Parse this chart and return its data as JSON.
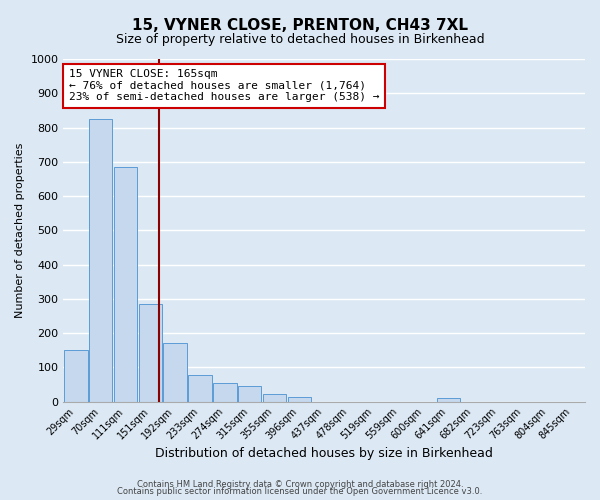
{
  "title": "15, VYNER CLOSE, PRENTON, CH43 7XL",
  "subtitle": "Size of property relative to detached houses in Birkenhead",
  "xlabel": "Distribution of detached houses by size in Birkenhead",
  "ylabel": "Number of detached properties",
  "bins": [
    "29sqm",
    "70sqm",
    "111sqm",
    "151sqm",
    "192sqm",
    "233sqm",
    "274sqm",
    "315sqm",
    "355sqm",
    "396sqm",
    "437sqm",
    "478sqm",
    "519sqm",
    "559sqm",
    "600sqm",
    "641sqm",
    "682sqm",
    "723sqm",
    "763sqm",
    "804sqm",
    "845sqm"
  ],
  "values": [
    150,
    825,
    685,
    285,
    170,
    78,
    55,
    45,
    22,
    15,
    0,
    0,
    0,
    0,
    0,
    10,
    0,
    0,
    0,
    0,
    0
  ],
  "bar_color": "#c5d8ed",
  "bar_edge_color": "#5b9bd5",
  "property_line_color": "#8b0000",
  "annotation_title": "15 VYNER CLOSE: 165sqm",
  "annotation_line1": "← 76% of detached houses are smaller (1,764)",
  "annotation_line2": "23% of semi-detached houses are larger (538) →",
  "annotation_box_color": "#ffffff",
  "annotation_box_edge_color": "#cc0000",
  "ylim": [
    0,
    1000
  ],
  "yticks": [
    0,
    100,
    200,
    300,
    400,
    500,
    600,
    700,
    800,
    900,
    1000
  ],
  "footer1": "Contains HM Land Registry data © Crown copyright and database right 2024.",
  "footer2": "Contains public sector information licensed under the Open Government Licence v3.0.",
  "background_color": "#dce9f5",
  "grid_color": "#ffffff"
}
